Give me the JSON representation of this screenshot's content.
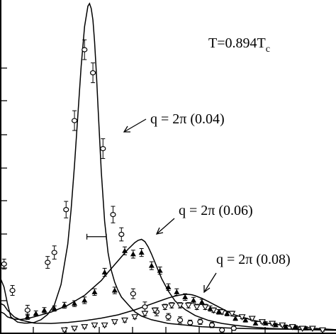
{
  "chart_data": {
    "type": "line",
    "title": "",
    "xlabel": "",
    "ylabel": "",
    "xlim": [
      0,
      100
    ],
    "ylim": [
      0,
      100
    ],
    "grid": false,
    "legend": "none",
    "annotations": {
      "temperature_main": "T=0.894T",
      "temperature_sub": "c",
      "label_q004": "q = 2π (0.04)",
      "label_q006": "q = 2π (0.06)",
      "label_q008": "q = 2π (0.08)"
    },
    "error_bar_example": {
      "x": [
        25.7,
        31.5
      ],
      "y": 29.3
    },
    "series": [
      {
        "curve_x": [
          0,
          1,
          2,
          3,
          5,
          7,
          8,
          10,
          12,
          14,
          16,
          18,
          20,
          21,
          22,
          23,
          24,
          25,
          26,
          26.5,
          27,
          27.5,
          28,
          28.5,
          29,
          30,
          31,
          32,
          33,
          34,
          35,
          36,
          38,
          40,
          42,
          45,
          50,
          55,
          60,
          70,
          80,
          90,
          100
        ],
        "curve_y": [
          16.5,
          14,
          9,
          5,
          3.4,
          3.1,
          3.1,
          3.3,
          4.1,
          5.7,
          8.6,
          14.8,
          27,
          37.5,
          51,
          66,
          81,
          93,
          99.2,
          100,
          98.5,
          95,
          88.5,
          79.5,
          69,
          49,
          34,
          24.5,
          19,
          15.5,
          13,
          11,
          8.7,
          6.5,
          5.2,
          4.1,
          3,
          2.5,
          2,
          1.5,
          1.3,
          1.2,
          1.1
        ],
        "points_x": [
          1,
          3.5,
          8,
          14,
          16,
          19.5,
          22,
          25,
          27.5,
          30.5,
          33.5,
          36,
          39.5,
          43,
          46.5,
          50,
          53.5,
          56.5,
          59.5,
          63,
          66,
          69.5
        ],
        "points_y": [
          21,
          13,
          7,
          21.5,
          24.5,
          37.5,
          64.5,
          86,
          79,
          56,
          36,
          30,
          12,
          8,
          6.5,
          5,
          4,
          3.2,
          3.5,
          2.5,
          1,
          1.5
        ],
        "points_err": [
          1.5,
          1.5,
          1.5,
          1.8,
          2,
          2.5,
          3,
          3,
          3,
          3,
          2.5,
          2,
          1.5,
          1.5,
          1.2,
          1,
          1,
          0.8,
          0.8,
          0.8,
          0.6,
          0.6
        ],
        "marker": "circle"
      },
      {
        "curve_x": [
          0,
          1,
          2,
          4,
          6,
          8,
          10,
          15,
          20,
          25,
          30,
          32,
          35,
          38,
          40,
          41,
          42,
          43,
          44,
          45,
          46,
          47,
          48,
          50,
          52,
          55,
          58,
          62,
          66,
          70,
          75,
          80,
          85,
          90,
          100
        ],
        "curve_y": [
          6.5,
          6,
          5,
          4.3,
          4.2,
          4.5,
          5,
          6.4,
          8.5,
          11.5,
          16,
          18.5,
          22,
          25.5,
          27.5,
          28.2,
          28.5,
          27.8,
          26.2,
          24,
          21.5,
          19,
          16.6,
          12.8,
          9.8,
          7.2,
          5.4,
          3.9,
          3,
          2.4,
          1.9,
          1.5,
          1.3,
          1.1,
          0.9
        ],
        "points_x": [
          8,
          10.5,
          13,
          16,
          19,
          22,
          25,
          28,
          31,
          34,
          37,
          39.5,
          42,
          45,
          47.5,
          50,
          52.5,
          55,
          57.5,
          60,
          62.5,
          65,
          67.5,
          70,
          73,
          76,
          79,
          82,
          85,
          88,
          91
        ],
        "points_y": [
          5,
          6,
          7,
          7.5,
          8.5,
          9,
          10,
          12.5,
          18.5,
          13,
          25,
          24,
          24.5,
          20.5,
          19,
          14,
          12.5,
          11,
          10,
          9.5,
          7.5,
          6.5,
          6,
          4.5,
          4,
          3,
          3,
          2.5,
          2,
          1.8,
          1.5
        ],
        "points_err": [
          0.8,
          0.8,
          0.8,
          0.8,
          0.9,
          0.9,
          1,
          1,
          1.2,
          1,
          1.2,
          1.2,
          1.2,
          1.2,
          1.1,
          1,
          1,
          1,
          0.9,
          0.8,
          0.8,
          0.7,
          0.7,
          0.6,
          0.6,
          0.5,
          0.5,
          0.5,
          0.5,
          0.5,
          0.5
        ],
        "marker": "triangle-up"
      },
      {
        "curve_x": [
          0,
          1,
          2,
          4,
          6,
          10,
          15,
          20,
          25,
          30,
          35,
          40,
          45,
          48,
          50,
          52,
          54,
          55,
          56,
          57,
          58,
          60,
          62,
          65,
          68,
          70,
          75,
          80,
          85,
          90,
          95,
          100
        ],
        "curve_y": [
          9,
          8.5,
          7,
          5,
          4,
          3.1,
          3,
          3.3,
          3.8,
          4.6,
          5.6,
          7.1,
          8.9,
          10,
          10.7,
          11.3,
          11.7,
          11.8,
          11.8,
          11.7,
          11.4,
          10.6,
          9.6,
          8,
          6.4,
          5.5,
          4,
          3,
          2.3,
          1.8,
          1.4,
          1.1
        ],
        "points_x": [
          19,
          22,
          25,
          28,
          31,
          34,
          37,
          40,
          43,
          46,
          49,
          51,
          53.5,
          56,
          58.5,
          61,
          63.5,
          66,
          69,
          72,
          75,
          78,
          81,
          84,
          87,
          90,
          93,
          96
        ],
        "points_y": [
          1,
          1.5,
          2,
          2.5,
          2.5,
          3.5,
          4,
          5,
          6,
          7,
          8,
          8.5,
          8.5,
          8.5,
          8,
          8,
          7,
          6.5,
          6,
          5,
          4.5,
          3.5,
          3,
          2.5,
          2,
          1.5,
          1.5,
          1
        ],
        "points_err": [
          0.4,
          0.4,
          0.4,
          0.5,
          0.5,
          0.5,
          0.6,
          0.6,
          0.7,
          0.7,
          0.8,
          0.8,
          0.8,
          0.8,
          0.8,
          0.8,
          0.7,
          0.7,
          0.7,
          0.6,
          0.6,
          0.5,
          0.5,
          0.4,
          0.4,
          0.4,
          0.4,
          0.4
        ],
        "marker": "triangle-down"
      }
    ]
  }
}
